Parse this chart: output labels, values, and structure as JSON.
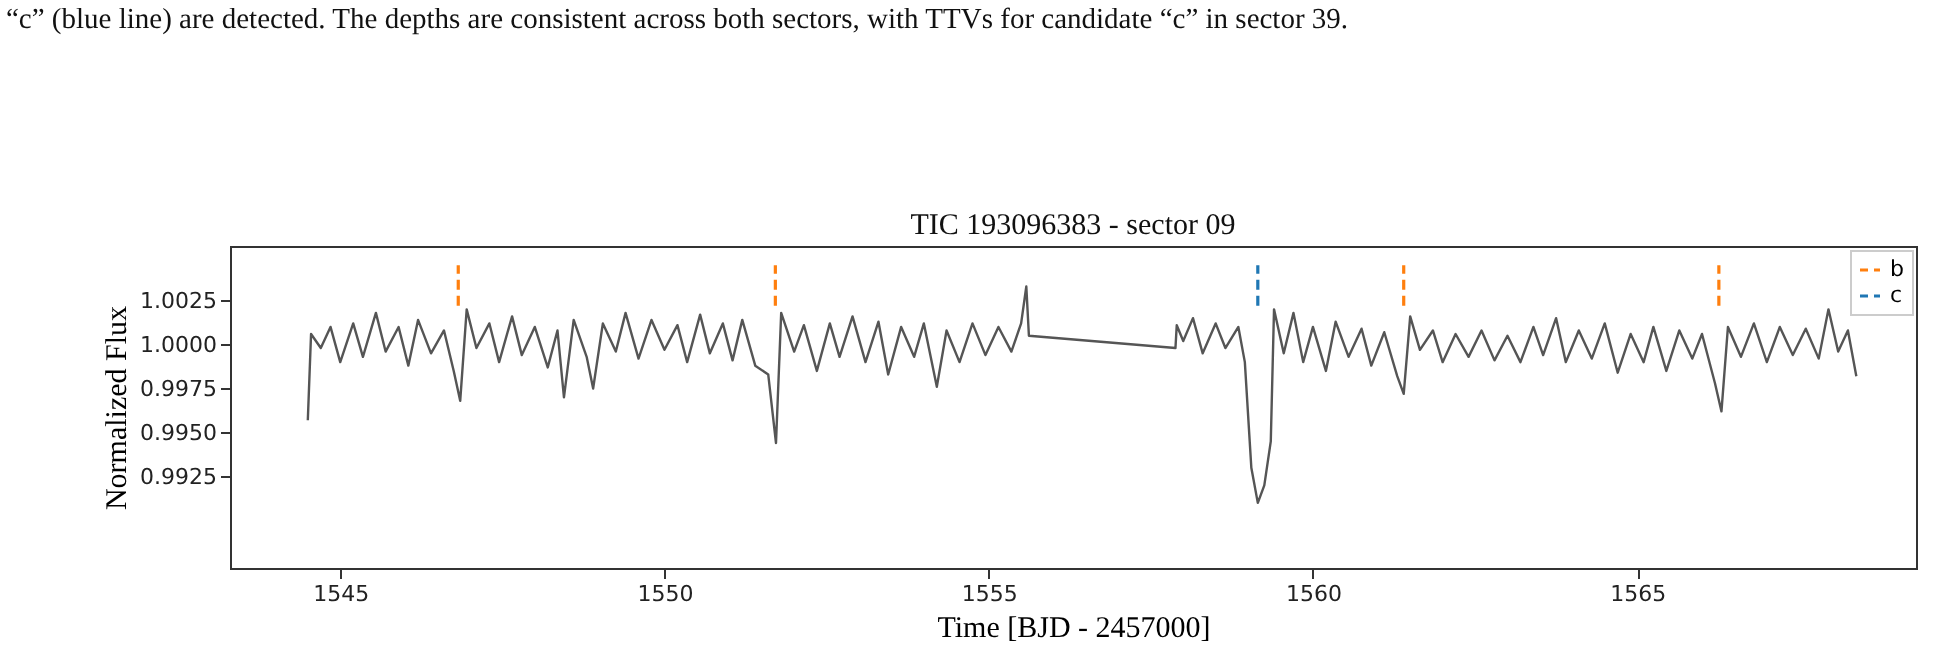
{
  "chart_data": {
    "type": "line",
    "title": "TIC 193096383 - sector 09",
    "xlabel": "Time [BJD - 2457000]",
    "ylabel": "Normalized Flux",
    "annotations": [
      "“c” (blue line) are detected. The depths are consistent across both sectors, with TTVs for candidate “c” in sector 39."
    ],
    "xlim": [
      1543.3,
      1569.3
    ],
    "xticks": [
      1545,
      1550,
      1555,
      1560,
      1565
    ],
    "ylim": [
      0.9873,
      1.0056
    ],
    "yticks": [
      {
        "value": 0.9925,
        "label": "0.9925"
      },
      {
        "value": 0.995,
        "label": "0.9950"
      },
      {
        "value": 0.9975,
        "label": "0.9975"
      },
      {
        "value": 1.0,
        "label": "1.0000"
      },
      {
        "value": 1.0025,
        "label": "1.0025"
      }
    ],
    "grid": false,
    "legend": "top right",
    "series": [
      {
        "color": "#555555",
        "line_style": "solid",
        "x": [
          1544.5,
          1544.55,
          1544.7,
          1544.85,
          1545.0,
          1545.2,
          1545.35,
          1545.55,
          1545.7,
          1545.9,
          1546.05,
          1546.2,
          1546.4,
          1546.6,
          1546.75,
          1546.85,
          1546.95,
          1547.1,
          1547.3,
          1547.45,
          1547.65,
          1547.8,
          1548.0,
          1548.2,
          1548.35,
          1548.45,
          1548.6,
          1548.8,
          1548.9,
          1549.05,
          1549.25,
          1549.4,
          1549.6,
          1549.8,
          1550.0,
          1550.2,
          1550.35,
          1550.55,
          1550.7,
          1550.9,
          1551.05,
          1551.2,
          1551.4,
          1551.6,
          1551.72,
          1551.8,
          1552.0,
          1552.15,
          1552.35,
          1552.55,
          1552.7,
          1552.9,
          1553.1,
          1553.3,
          1553.45,
          1553.65,
          1553.85,
          1554.0,
          1554.2,
          1554.35,
          1554.55,
          1554.75,
          1554.95,
          1555.15,
          1555.35,
          1555.5,
          1555.58,
          1555.62,
          1557.88,
          1557.9,
          1558.0,
          1558.15,
          1558.3,
          1558.5,
          1558.65,
          1558.85,
          1558.95,
          1559.05,
          1559.15,
          1559.25,
          1559.35,
          1559.4,
          1559.55,
          1559.7,
          1559.85,
          1560.0,
          1560.2,
          1560.35,
          1560.55,
          1560.75,
          1560.9,
          1561.1,
          1561.3,
          1561.4,
          1561.5,
          1561.65,
          1561.85,
          1562.0,
          1562.2,
          1562.4,
          1562.6,
          1562.8,
          1563.0,
          1563.2,
          1563.4,
          1563.55,
          1563.75,
          1563.9,
          1564.1,
          1564.3,
          1564.5,
          1564.7,
          1564.9,
          1565.1,
          1565.25,
          1565.45,
          1565.65,
          1565.85,
          1566.0,
          1566.2,
          1566.3,
          1566.4,
          1566.6,
          1566.8,
          1567.0,
          1567.2,
          1567.4,
          1567.6,
          1567.8,
          1567.95,
          1568.1,
          1568.25,
          1568.38
        ],
        "values": [
          0.9957,
          1.0006,
          0.9998,
          1.001,
          0.999,
          1.0012,
          0.9993,
          1.0018,
          0.9996,
          1.001,
          0.9988,
          1.0014,
          0.9995,
          1.0008,
          0.9985,
          0.9968,
          1.002,
          0.9998,
          1.0012,
          0.999,
          1.0016,
          0.9994,
          1.001,
          0.9987,
          1.0008,
          0.997,
          1.0014,
          0.9993,
          0.9975,
          1.0012,
          0.9996,
          1.0018,
          0.9992,
          1.0014,
          0.9997,
          1.0011,
          0.999,
          1.0017,
          0.9995,
          1.0012,
          0.9991,
          1.0014,
          0.9988,
          0.9983,
          0.9944,
          1.0018,
          0.9996,
          1.0011,
          0.9985,
          1.0012,
          0.9993,
          1.0016,
          0.999,
          1.0013,
          0.9983,
          1.001,
          0.9993,
          1.0012,
          0.9976,
          1.0008,
          0.999,
          1.0012,
          0.9994,
          1.001,
          0.9996,
          1.0012,
          1.0033,
          1.0005,
          0.9998,
          1.0011,
          1.0002,
          1.0015,
          0.9995,
          1.0012,
          0.9998,
          1.001,
          0.999,
          0.993,
          0.991,
          0.992,
          0.9945,
          1.002,
          0.9995,
          1.0018,
          0.999,
          1.001,
          0.9985,
          1.0013,
          0.9993,
          1.0009,
          0.9988,
          1.0007,
          0.9982,
          0.9972,
          1.0016,
          0.9997,
          1.0008,
          0.999,
          1.0006,
          0.9993,
          1.0008,
          0.9991,
          1.0005,
          0.999,
          1.001,
          0.9994,
          1.0015,
          0.999,
          1.0008,
          0.9992,
          1.0012,
          0.9984,
          1.0006,
          0.999,
          1.001,
          0.9985,
          1.0008,
          0.9992,
          1.0006,
          0.9978,
          0.9962,
          1.001,
          0.9993,
          1.0012,
          0.999,
          1.001,
          0.9994,
          1.0009,
          0.9992,
          1.002,
          0.9996,
          1.0008,
          0.9982
        ]
      },
      {
        "name": "b",
        "color": "#ff7f0e",
        "line_style": "dashed",
        "x": [
          1546.82,
          1546.82,
          null,
          1551.71,
          1551.71,
          null,
          1561.4,
          1561.4,
          null,
          1566.26,
          1566.26
        ],
        "values": [
          1.0022,
          1.0045,
          null,
          1.0022,
          1.0045,
          null,
          1.0022,
          1.0045,
          null,
          1.0022,
          1.0045
        ]
      },
      {
        "name": "c",
        "color": "#1f77b4",
        "line_style": "dashed",
        "x": [
          1559.15,
          1559.15
        ],
        "values": [
          1.0022,
          1.0045
        ]
      }
    ]
  }
}
